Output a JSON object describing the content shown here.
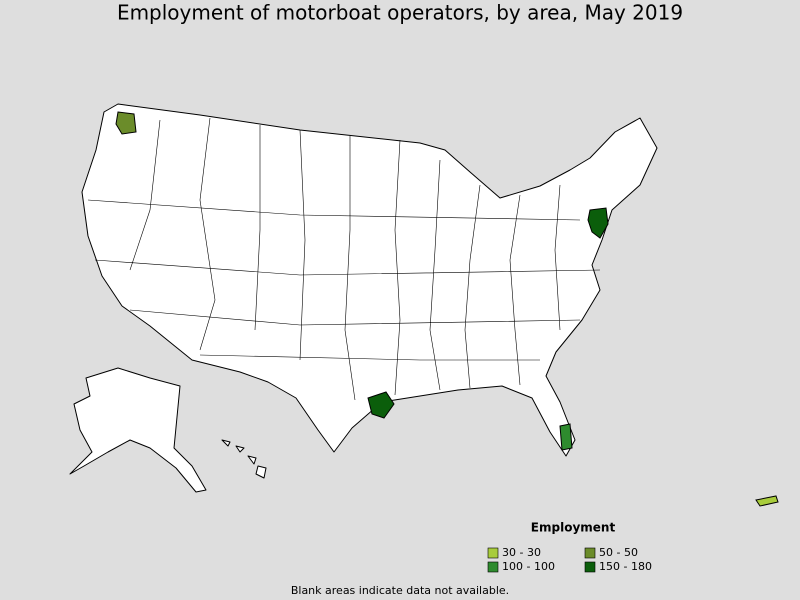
{
  "header": {
    "title": "Employment of motorboat operators, by area, May 2019"
  },
  "legend": {
    "title": "Employment",
    "items": [
      {
        "label": "30 - 30",
        "color": "#a8cc3c"
      },
      {
        "label": "50 - 50",
        "color": "#6b8c2a"
      },
      {
        "label": "100 - 100",
        "color": "#2e8b2e"
      },
      {
        "label": "150 - 180",
        "color": "#0b5e0b"
      }
    ]
  },
  "footnote": "Blank areas indicate data not available."
}
